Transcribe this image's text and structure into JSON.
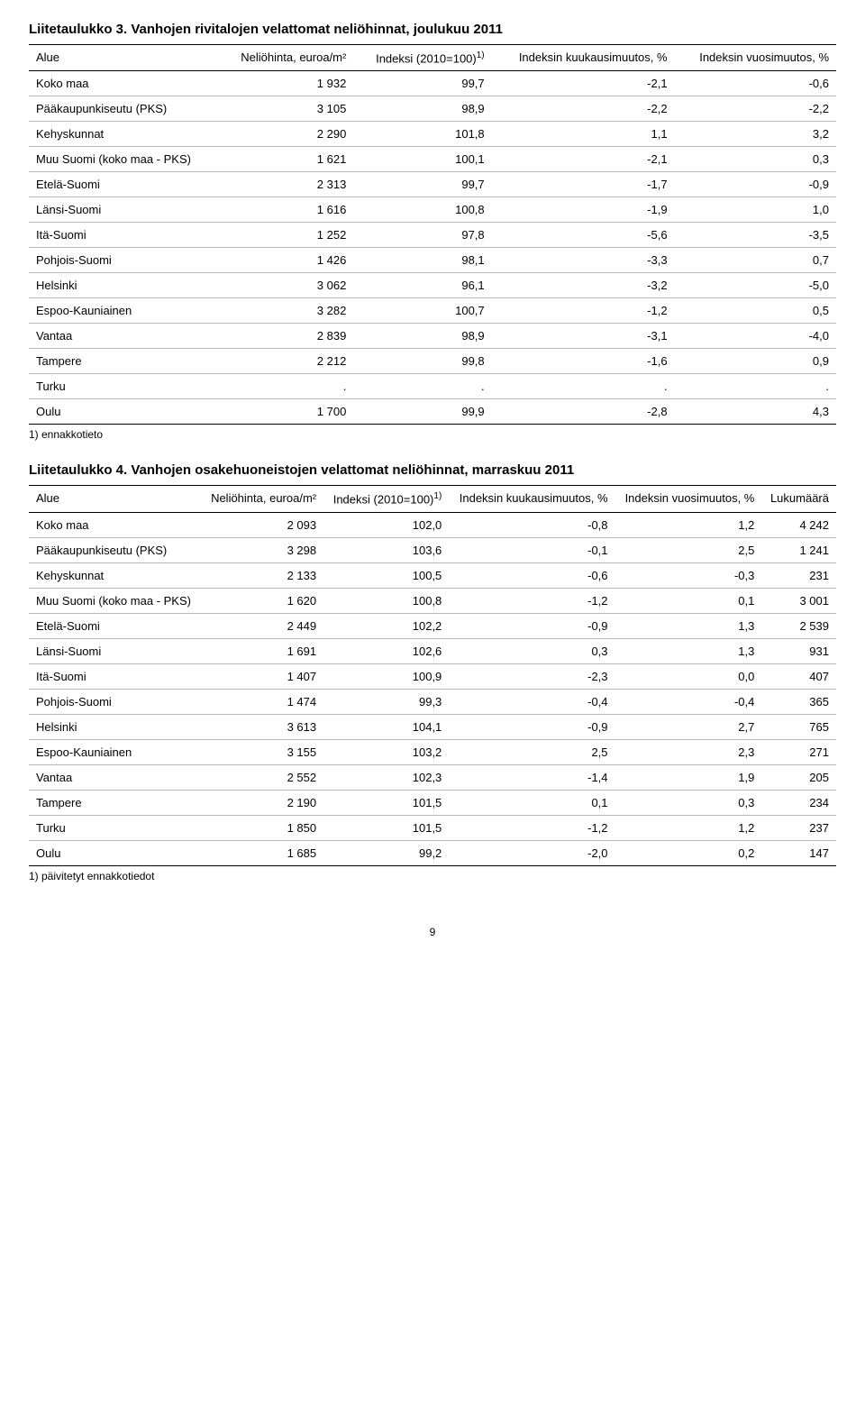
{
  "table3": {
    "title": "Liitetaulukko 3. Vanhojen rivitalojen velattomat neliöhinnat, joulukuu 2011",
    "columns": [
      "Alue",
      "Neliöhinta, euroa/m²",
      "Indeksi (2010=100)",
      "Indeksin kuukausimuutos, %",
      "Indeksin vuosimuutos, %"
    ],
    "sup": "1)",
    "rows": [
      [
        "Koko maa",
        "1 932",
        "99,7",
        "-2,1",
        "-0,6"
      ],
      [
        "Pääkaupunkiseutu (PKS)",
        "3 105",
        "98,9",
        "-2,2",
        "-2,2"
      ],
      [
        "Kehyskunnat",
        "2 290",
        "101,8",
        "1,1",
        "3,2"
      ],
      [
        "Muu Suomi (koko maa - PKS)",
        "1 621",
        "100,1",
        "-2,1",
        "0,3"
      ],
      [
        "Etelä-Suomi",
        "2 313",
        "99,7",
        "-1,7",
        "-0,9"
      ],
      [
        "Länsi-Suomi",
        "1 616",
        "100,8",
        "-1,9",
        "1,0"
      ],
      [
        "Itä-Suomi",
        "1 252",
        "97,8",
        "-5,6",
        "-3,5"
      ],
      [
        "Pohjois-Suomi",
        "1 426",
        "98,1",
        "-3,3",
        "0,7"
      ],
      [
        "Helsinki",
        "3 062",
        "96,1",
        "-3,2",
        "-5,0"
      ],
      [
        "Espoo-Kauniainen",
        "3 282",
        "100,7",
        "-1,2",
        "0,5"
      ],
      [
        "Vantaa",
        "2 839",
        "98,9",
        "-3,1",
        "-4,0"
      ],
      [
        "Tampere",
        "2 212",
        "99,8",
        "-1,6",
        "0,9"
      ],
      [
        "Turku",
        ".",
        ".",
        ".",
        "."
      ],
      [
        "Oulu",
        "1 700",
        "99,9",
        "-2,8",
        "4,3"
      ]
    ],
    "footnote": "1) ennakkotieto"
  },
  "table4": {
    "title": "Liitetaulukko 4. Vanhojen osakehuoneistojen velattomat neliöhinnat, marraskuu 2011",
    "columns": [
      "Alue",
      "Neliöhinta, euroa/m²",
      "Indeksi (2010=100)",
      "Indeksin kuukausimuutos, %",
      "Indeksin vuosimuutos, %",
      "Lukumäärä"
    ],
    "sup": "1)",
    "rows": [
      [
        "Koko maa",
        "2 093",
        "102,0",
        "-0,8",
        "1,2",
        "4 242"
      ],
      [
        "Pääkaupunkiseutu (PKS)",
        "3 298",
        "103,6",
        "-0,1",
        "2,5",
        "1 241"
      ],
      [
        "Kehyskunnat",
        "2 133",
        "100,5",
        "-0,6",
        "-0,3",
        "231"
      ],
      [
        "Muu Suomi (koko maa - PKS)",
        "1 620",
        "100,8",
        "-1,2",
        "0,1",
        "3 001"
      ],
      [
        "Etelä-Suomi",
        "2 449",
        "102,2",
        "-0,9",
        "1,3",
        "2 539"
      ],
      [
        "Länsi-Suomi",
        "1 691",
        "102,6",
        "0,3",
        "1,3",
        "931"
      ],
      [
        "Itä-Suomi",
        "1 407",
        "100,9",
        "-2,3",
        "0,0",
        "407"
      ],
      [
        "Pohjois-Suomi",
        "1 474",
        "99,3",
        "-0,4",
        "-0,4",
        "365"
      ],
      [
        "Helsinki",
        "3 613",
        "104,1",
        "-0,9",
        "2,7",
        "765"
      ],
      [
        "Espoo-Kauniainen",
        "3 155",
        "103,2",
        "2,5",
        "2,3",
        "271"
      ],
      [
        "Vantaa",
        "2 552",
        "102,3",
        "-1,4",
        "1,9",
        "205"
      ],
      [
        "Tampere",
        "2 190",
        "101,5",
        "0,1",
        "0,3",
        "234"
      ],
      [
        "Turku",
        "1 850",
        "101,5",
        "-1,2",
        "1,2",
        "237"
      ],
      [
        "Oulu",
        "1 685",
        "99,2",
        "-2,0",
        "0,2",
        "147"
      ]
    ],
    "footnote": "1) päivitetyt ennakkotiedot"
  },
  "pageNumber": "9"
}
